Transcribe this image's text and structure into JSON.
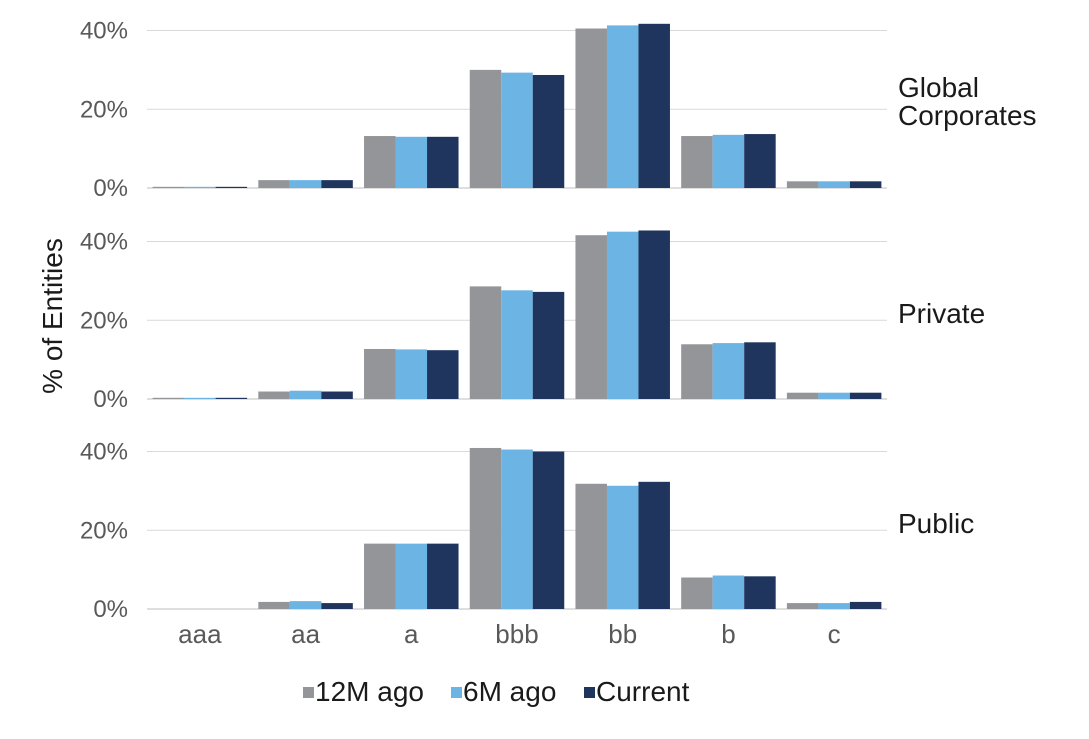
{
  "chart_data": {
    "type": "bar",
    "ylabel": "% of Entities",
    "categories": [
      "aaa",
      "aa",
      "a",
      "bbb",
      "bb",
      "b",
      "c"
    ],
    "yticks": [
      "0%",
      "20%",
      "40%"
    ],
    "ylim": [
      0,
      40
    ],
    "grid": true,
    "legend_position": "bottom",
    "series_colors": [
      "#939598",
      "#6cb4e4",
      "#1f355e"
    ],
    "legend": [
      "12M ago",
      "6M ago",
      "Current"
    ],
    "panels": [
      {
        "label_lines": [
          "Global",
          "Corporates"
        ],
        "series": [
          {
            "name": "12M ago",
            "values": [
              0.3,
              2.0,
              13.2,
              30.0,
              40.5,
              13.2,
              1.7
            ]
          },
          {
            "name": "6M ago",
            "values": [
              0.3,
              2.0,
              13.0,
              29.3,
              41.3,
              13.5,
              1.7
            ]
          },
          {
            "name": "Current",
            "values": [
              0.3,
              2.0,
              13.0,
              28.7,
              41.7,
              13.7,
              1.7
            ]
          }
        ]
      },
      {
        "label_lines": [
          "Private"
        ],
        "series": [
          {
            "name": "12M ago",
            "values": [
              0.3,
              1.9,
              12.7,
              28.6,
              41.6,
              13.9,
              1.6
            ]
          },
          {
            "name": "6M ago",
            "values": [
              0.3,
              2.1,
              12.6,
              27.6,
              42.5,
              14.2,
              1.6
            ]
          },
          {
            "name": "Current",
            "values": [
              0.3,
              1.9,
              12.4,
              27.2,
              42.8,
              14.4,
              1.6
            ]
          }
        ]
      },
      {
        "label_lines": [
          "Public"
        ],
        "series": [
          {
            "name": "12M ago",
            "values": [
              0,
              1.8,
              16.6,
              40.9,
              31.8,
              8.0,
              1.5
            ]
          },
          {
            "name": "6M ago",
            "values": [
              0,
              2.0,
              16.6,
              40.5,
              31.3,
              8.5,
              1.5
            ]
          },
          {
            "name": "Current",
            "values": [
              0,
              1.5,
              16.6,
              40.0,
              32.3,
              8.3,
              1.8
            ]
          }
        ]
      }
    ]
  }
}
